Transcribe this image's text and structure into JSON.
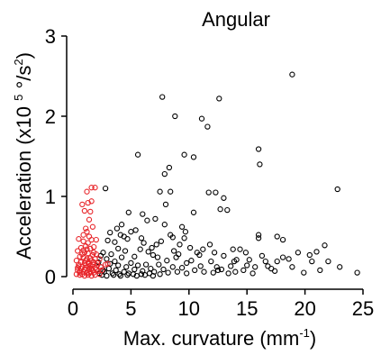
{
  "chart_data": {
    "type": "scatter",
    "title": "Angular",
    "xlabel": {
      "main": "Max. curvature (mm",
      "sup": "-1",
      "close": ")"
    },
    "ylabel": {
      "main": "Acceleration (x10 ",
      "sup": "5",
      "mid": " °/s",
      "sup2": "2",
      "close": ")"
    },
    "xlim": [
      0,
      25
    ],
    "ylim": [
      0,
      3
    ],
    "xticks": [
      0,
      5,
      10,
      15,
      20,
      25
    ],
    "yticks": [
      0,
      1,
      2,
      3
    ],
    "grid": false,
    "colors": {
      "black_series": "#000000",
      "red_series": "#e8262b",
      "axis": "#000000"
    },
    "series": [
      {
        "color": "black",
        "points": [
          [
            18.9,
            2.52
          ],
          [
            7.7,
            2.24
          ],
          [
            12.6,
            2.22
          ],
          [
            8.8,
            2.0
          ],
          [
            11.1,
            1.97
          ],
          [
            11.6,
            1.87
          ],
          [
            9.6,
            1.52
          ],
          [
            5.6,
            1.52
          ],
          [
            16.0,
            1.59
          ],
          [
            10.4,
            1.49
          ],
          [
            16.1,
            1.4
          ],
          [
            7.9,
            1.28
          ],
          [
            8.3,
            1.36
          ],
          [
            7.5,
            1.06
          ],
          [
            12.3,
            1.05
          ],
          [
            13.0,
            0.98
          ],
          [
            22.8,
            1.09
          ],
          [
            2.8,
            1.1
          ],
          [
            4.8,
            0.8
          ],
          [
            6.0,
            0.78
          ],
          [
            10.4,
            0.8
          ],
          [
            11.7,
            1.05
          ],
          [
            8.4,
            1.06
          ],
          [
            8.0,
            0.9
          ],
          [
            12.7,
            0.84
          ],
          [
            13.3,
            0.83
          ],
          [
            7.9,
            0.65
          ],
          [
            9.4,
            0.62
          ],
          [
            9.6,
            0.48
          ],
          [
            7.2,
            0.4
          ],
          [
            8.6,
            0.49
          ],
          [
            10.9,
            0.27
          ],
          [
            11.8,
            0.4
          ],
          [
            4.2,
            0.65
          ],
          [
            3.8,
            0.6
          ],
          [
            5.4,
            0.58
          ],
          [
            5.0,
            0.56
          ],
          [
            4.4,
            0.5
          ],
          [
            3.2,
            0.55
          ],
          [
            3.0,
            0.45
          ],
          [
            3.6,
            0.43
          ],
          [
            4.5,
            0.32
          ],
          [
            5.8,
            0.34
          ],
          [
            6.5,
            0.31
          ],
          [
            6.9,
            0.27
          ],
          [
            7.3,
            0.24
          ],
          [
            8.1,
            0.2
          ],
          [
            8.9,
            0.24
          ],
          [
            9.8,
            0.17
          ],
          [
            10.2,
            0.2
          ],
          [
            10.7,
            0.3
          ],
          [
            11.2,
            0.34
          ],
          [
            11.9,
            0.19
          ],
          [
            12.4,
            0.12
          ],
          [
            13.0,
            0.26
          ],
          [
            13.6,
            0.13
          ],
          [
            13.8,
            0.34
          ],
          [
            14.4,
            0.34
          ],
          [
            14.1,
            0.21
          ],
          [
            14.7,
            0.08
          ],
          [
            15.2,
            0.21
          ],
          [
            16.0,
            0.48
          ],
          [
            16.0,
            0.52
          ],
          [
            16.8,
            0.13
          ],
          [
            17.1,
            0.1
          ],
          [
            17.6,
            0.19
          ],
          [
            18.1,
            0.24
          ],
          [
            18.6,
            0.22
          ],
          [
            18.1,
            0.46
          ],
          [
            17.6,
            0.5
          ],
          [
            19.9,
            0.05
          ],
          [
            20.4,
            0.27
          ],
          [
            21.0,
            0.31
          ],
          [
            21.7,
            0.39
          ],
          [
            20.6,
            0.19
          ],
          [
            16.6,
            0.19
          ],
          [
            24.5,
            0.05
          ],
          [
            2.6,
            0.3
          ],
          [
            2.9,
            0.22
          ],
          [
            3.3,
            0.28
          ],
          [
            3.6,
            0.19
          ],
          [
            3.9,
            0.14
          ],
          [
            4.2,
            0.24
          ],
          [
            4.6,
            0.12
          ],
          [
            5.0,
            0.17
          ],
          [
            5.3,
            0.09
          ],
          [
            5.6,
            0.14
          ],
          [
            6.0,
            0.07
          ],
          [
            6.3,
            0.15
          ],
          [
            6.7,
            0.1
          ],
          [
            7.0,
            0.06
          ],
          [
            7.4,
            0.15
          ],
          [
            7.8,
            0.09
          ],
          [
            8.2,
            0.05
          ],
          [
            8.6,
            0.12
          ],
          [
            9.0,
            0.06
          ],
          [
            9.4,
            0.11
          ],
          [
            9.8,
            0.04
          ],
          [
            10.5,
            0.08
          ],
          [
            11.3,
            0.06
          ],
          [
            12.1,
            0.05
          ],
          [
            12.8,
            0.09
          ],
          [
            13.4,
            0.04
          ],
          [
            14.0,
            0.06
          ],
          [
            15.5,
            0.04
          ],
          [
            2.4,
            0.12
          ],
          [
            2.7,
            0.06
          ],
          [
            3.1,
            0.1
          ],
          [
            3.4,
            0.04
          ],
          [
            3.7,
            0.08
          ],
          [
            4.0,
            0.03
          ],
          [
            4.4,
            0.06
          ],
          [
            4.8,
            0.04
          ],
          [
            5.2,
            0.03
          ],
          [
            5.9,
            0.03
          ],
          [
            6.6,
            0.04
          ],
          [
            7.5,
            0.03
          ],
          [
            2.5,
            0.02
          ],
          [
            2.9,
            0.01
          ],
          [
            3.5,
            0.02
          ],
          [
            4.1,
            0.01
          ],
          [
            4.7,
            0.02
          ],
          [
            5.5,
            0.01
          ],
          [
            6.2,
            0.02
          ],
          [
            6.9,
            0.01
          ],
          [
            2.3,
            0.04
          ],
          [
            2.6,
            0.08
          ],
          [
            3.2,
            0.16
          ],
          [
            3.9,
            0.35
          ],
          [
            5.3,
            0.25
          ],
          [
            6.1,
            0.42
          ],
          [
            6.8,
            0.36
          ],
          [
            7.6,
            0.44
          ],
          [
            8.7,
            0.32
          ],
          [
            9.2,
            0.4
          ],
          [
            10.1,
            0.36
          ],
          [
            4.1,
            0.52
          ],
          [
            4.7,
            0.47
          ],
          [
            2.2,
            0.18
          ],
          [
            2.4,
            0.26
          ],
          [
            8.4,
            0.52
          ],
          [
            9.1,
            0.28
          ],
          [
            9.7,
            0.56
          ],
          [
            12.2,
            0.3
          ],
          [
            14.9,
            0.3
          ],
          [
            15.7,
            0.12
          ],
          [
            16.3,
            0.26
          ],
          [
            17.4,
            0.07
          ],
          [
            18.9,
            0.12
          ],
          [
            19.4,
            0.3
          ],
          [
            21.3,
            0.08
          ],
          [
            22.0,
            0.19
          ],
          [
            23.0,
            0.12
          ],
          [
            6.4,
            0.7
          ],
          [
            7.1,
            0.72
          ],
          [
            5.9,
            0.48
          ],
          [
            11.0,
            0.13
          ],
          [
            12.5,
            0.08
          ],
          [
            13.9,
            0.19
          ],
          [
            15.0,
            0.14
          ]
        ]
      },
      {
        "color": "red",
        "points": [
          [
            1.6,
            1.11
          ],
          [
            1.9,
            1.11
          ],
          [
            1.2,
            1.06
          ],
          [
            1.3,
            0.92
          ],
          [
            1.6,
            0.94
          ],
          [
            0.8,
            0.9
          ],
          [
            1.0,
            0.82
          ],
          [
            1.5,
            0.81
          ],
          [
            1.4,
            0.71
          ],
          [
            1.7,
            0.62
          ],
          [
            1.2,
            0.56
          ],
          [
            0.5,
            0.47
          ],
          [
            0.9,
            0.44
          ],
          [
            1.3,
            0.42
          ],
          [
            1.6,
            0.46
          ],
          [
            2.0,
            0.46
          ],
          [
            1.1,
            0.38
          ],
          [
            0.7,
            0.36
          ],
          [
            1.5,
            0.35
          ],
          [
            1.8,
            0.37
          ],
          [
            0.4,
            0.32
          ],
          [
            1.0,
            0.3
          ],
          [
            1.3,
            0.29
          ],
          [
            1.7,
            0.27
          ],
          [
            0.6,
            0.25
          ],
          [
            0.9,
            0.24
          ],
          [
            1.2,
            0.22
          ],
          [
            1.5,
            0.23
          ],
          [
            1.9,
            0.22
          ],
          [
            0.3,
            0.2
          ],
          [
            0.7,
            0.18
          ],
          [
            1.0,
            0.17
          ],
          [
            1.4,
            0.16
          ],
          [
            1.7,
            0.15
          ],
          [
            2.1,
            0.14
          ],
          [
            0.5,
            0.13
          ],
          [
            0.8,
            0.12
          ],
          [
            1.1,
            0.11
          ],
          [
            1.3,
            0.12
          ],
          [
            1.6,
            0.1
          ],
          [
            2.0,
            0.09
          ],
          [
            0.4,
            0.08
          ],
          [
            0.6,
            0.07
          ],
          [
            0.9,
            0.06
          ],
          [
            1.2,
            0.05
          ],
          [
            1.5,
            0.06
          ],
          [
            1.8,
            0.05
          ],
          [
            2.2,
            0.07
          ],
          [
            0.3,
            0.03
          ],
          [
            0.6,
            0.02
          ],
          [
            0.8,
            0.03
          ],
          [
            1.0,
            0.01
          ],
          [
            1.3,
            0.02
          ],
          [
            1.6,
            0.01
          ],
          [
            1.9,
            0.02
          ],
          [
            2.3,
            0.03
          ],
          [
            0.5,
            0.15
          ],
          [
            0.7,
            0.1
          ],
          [
            1.1,
            0.2
          ],
          [
            1.4,
            0.09
          ],
          [
            1.8,
            0.18
          ],
          [
            2.4,
            0.12
          ],
          [
            2.0,
            0.28
          ],
          [
            2.3,
            0.22
          ],
          [
            0.9,
            0.33
          ],
          [
            1.2,
            0.34
          ],
          [
            0.8,
            0.28
          ],
          [
            1.4,
            0.04
          ],
          [
            1.7,
            0.08
          ],
          [
            1.0,
            0.09
          ],
          [
            0.6,
            0.05
          ],
          [
            1.5,
            0.14
          ],
          [
            1.9,
            0.11
          ],
          [
            1.1,
            0.14
          ],
          [
            0.4,
            0.11
          ],
          [
            1.3,
            0.18
          ],
          [
            1.6,
            0.2
          ],
          [
            2.1,
            0.17
          ],
          [
            2.5,
            0.08
          ],
          [
            2.8,
            0.15
          ],
          [
            3.0,
            0.16
          ],
          [
            1.8,
            0.3
          ],
          [
            1.4,
            0.5
          ],
          [
            1.1,
            0.6
          ],
          [
            0.9,
            0.52
          ]
        ]
      }
    ]
  }
}
